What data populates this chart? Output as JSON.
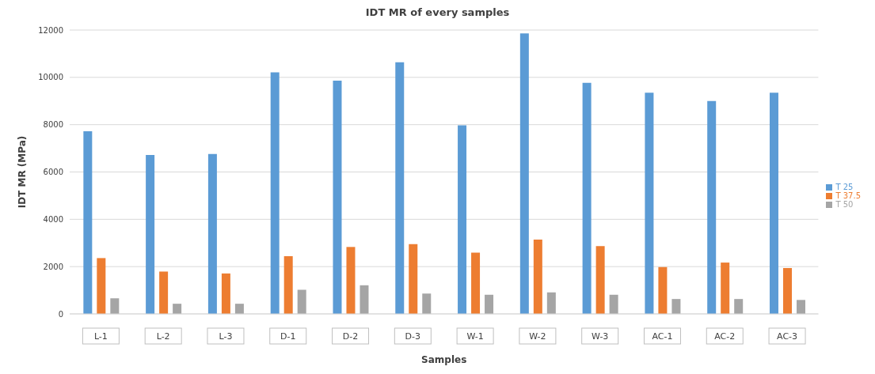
{
  "chart_data": {
    "type": "bar",
    "title": "IDT MR of every samples",
    "xlabel": "Samples",
    "ylabel": "IDT MR (MPa)",
    "categories": [
      "L-1",
      "L-2",
      "L-3",
      "D-1",
      "D-2",
      "D-3",
      "W-1",
      "W-2",
      "W-3",
      "AC-1",
      "AC-2",
      "AC-3"
    ],
    "series": [
      {
        "name": "T 25",
        "color": "#5b9bd5",
        "values": [
          7720,
          6720,
          6760,
          10210,
          9860,
          10640,
          7970,
          11860,
          9770,
          9350,
          9000,
          9350
        ]
      },
      {
        "name": "T 37.5",
        "color": "#ed7d31",
        "values": [
          2360,
          1790,
          1710,
          2440,
          2830,
          2950,
          2590,
          3140,
          2870,
          1980,
          2170,
          1940
        ]
      },
      {
        "name": "T 50",
        "color": "#a5a5a5",
        "values": [
          660,
          430,
          430,
          1020,
          1210,
          860,
          810,
          910,
          810,
          630,
          630,
          590
        ]
      }
    ],
    "ylim": [
      0,
      12000
    ],
    "yticks": [
      0,
      2000,
      4000,
      6000,
      8000,
      10000,
      12000
    ],
    "grid": "y",
    "legend": "right"
  }
}
